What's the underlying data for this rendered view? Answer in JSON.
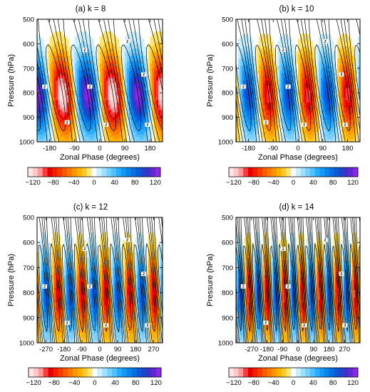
{
  "chart_data": [
    {
      "type": "heatmap",
      "title": "(a) k = 8",
      "k": 8,
      "xlabel": "Zonal Phase (degrees)",
      "ylabel": "Pressure (hPa)",
      "xlim": [
        -225,
        225
      ],
      "ylim": [
        1000,
        500
      ],
      "y_reversed": true,
      "xticks": [
        -180,
        -90,
        0,
        90,
        180
      ],
      "yticks": [
        500,
        600,
        700,
        800,
        900,
        1000
      ],
      "shading_max_magnitude": 130,
      "contour_labels": [
        "2",
        "2",
        "2",
        "2",
        "2",
        "2",
        "2",
        "2"
      ],
      "colorbar": {
        "ticks": [
          -120,
          -80,
          -40,
          0,
          40,
          80,
          120
        ],
        "range": [
          -130,
          130
        ],
        "contour_interval": 10
      }
    },
    {
      "type": "heatmap",
      "title": "(b) k = 10",
      "k": 10,
      "xlabel": "Zonal Phase (degrees)",
      "ylabel": "Pressure (hPa)",
      "xlim": [
        -225,
        225
      ],
      "ylim": [
        1000,
        500
      ],
      "y_reversed": true,
      "xticks": [
        -180,
        -90,
        0,
        90,
        180
      ],
      "yticks": [
        500,
        600,
        700,
        800,
        900,
        1000
      ],
      "shading_max_magnitude": 100,
      "contour_labels": [
        "2",
        "2",
        "2",
        "2",
        "2",
        "2",
        "2",
        "2"
      ],
      "colorbar": {
        "ticks": [
          -120,
          -80,
          -40,
          0,
          40,
          80,
          120
        ],
        "range": [
          -130,
          130
        ],
        "contour_interval": 10
      }
    },
    {
      "type": "heatmap",
      "title": "(c) k = 12",
      "k": 12,
      "xlabel": "Zonal Phase (degrees)",
      "ylabel": "Pressure (hPa)",
      "xlim": [
        -315,
        315
      ],
      "ylim": [
        1000,
        500
      ],
      "y_reversed": true,
      "xticks": [
        -270,
        -180,
        -90,
        0,
        90,
        180,
        270
      ],
      "yticks": [
        500,
        600,
        700,
        800,
        900,
        1000
      ],
      "shading_max_magnitude": 95,
      "contour_labels": [
        "2",
        "2",
        "2",
        "2",
        "2",
        "2",
        "2",
        "2"
      ],
      "colorbar": {
        "ticks": [
          -120,
          -80,
          -40,
          0,
          40,
          80,
          120
        ],
        "range": [
          -130,
          130
        ],
        "contour_interval": 10
      }
    },
    {
      "type": "heatmap",
      "title": "(d) k = 14",
      "k": 14,
      "xlabel": "Zonal Phase (degrees)",
      "ylabel": "Pressure (hPa)",
      "xlim": [
        -360,
        360
      ],
      "ylim": [
        1000,
        500
      ],
      "y_reversed": true,
      "xticks": [
        -270,
        -180,
        -90,
        0,
        90,
        180,
        270
      ],
      "yticks": [
        500,
        600,
        700,
        800,
        900,
        1000
      ],
      "shading_max_magnitude": 100,
      "contour_labels": [
        "2",
        "2",
        "2",
        "2",
        "2",
        "2",
        "2",
        "2"
      ],
      "colorbar": {
        "ticks": [
          -120,
          -80,
          -40,
          0,
          40,
          80,
          120
        ],
        "range": [
          -130,
          130
        ],
        "contour_interval": 10
      }
    }
  ],
  "colors": {
    "negative_shades": [
      "#ffe4e4",
      "#ffc8c8",
      "#ff9a9a",
      "#ff3c3c",
      "#e80000",
      "#f21e00",
      "#f73c00",
      "#fa5a00",
      "#fd7800",
      "#ff9600",
      "#ffb000",
      "#ffca28",
      "#ffe670"
    ],
    "zero_shade": "#ffffff",
    "positive_shades": [
      "#c8f0ff",
      "#a0e0ff",
      "#78d0ff",
      "#50c0ff",
      "#28acff",
      "#1498f5",
      "#0a84eb",
      "#0670e1",
      "#0c5ad7",
      "#1e46cd",
      "#3c32c8",
      "#6428d2",
      "#8c28e6"
    ],
    "contour_line": "#000000"
  }
}
